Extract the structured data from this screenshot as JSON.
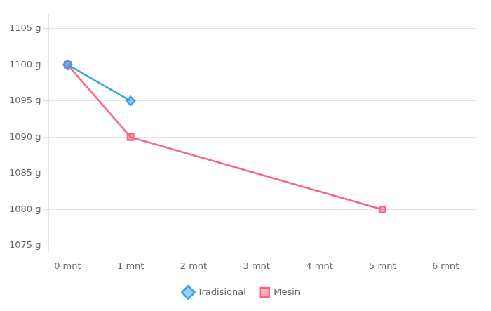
{
  "chart_data": {
    "type": "line",
    "series": [
      {
        "name": "Tradisional",
        "x": [
          0,
          1
        ],
        "values": [
          1100,
          1095
        ],
        "marker": "diamond"
      },
      {
        "name": "Mesin",
        "x": [
          0,
          1,
          5
        ],
        "values": [
          1100,
          1090,
          1080
        ],
        "marker": "square"
      }
    ],
    "xlim": [
      -0.3,
      6.5
    ],
    "xticks": [
      {
        "value": 0,
        "label": "0 mnt"
      },
      {
        "value": 1,
        "label": "1 mnt"
      },
      {
        "value": 2,
        "label": "2 mnt"
      },
      {
        "value": 3,
        "label": "3 mnt"
      },
      {
        "value": 4,
        "label": "4 mnt"
      },
      {
        "value": 5,
        "label": "5 mnt"
      },
      {
        "value": 6,
        "label": "6 mnt"
      }
    ],
    "ylim": [
      1074,
      1107
    ],
    "yticks": [
      {
        "value": 1075,
        "label": "1075 g"
      },
      {
        "value": 1080,
        "label": "1080 g"
      },
      {
        "value": 1085,
        "label": "1085 g"
      },
      {
        "value": 1090,
        "label": "1090 g"
      },
      {
        "value": 1095,
        "label": "1095 g"
      },
      {
        "value": 1100,
        "label": "1100 g"
      },
      {
        "value": 1105,
        "label": "1105 g"
      }
    ],
    "grid": "y",
    "legend": "bottom"
  }
}
